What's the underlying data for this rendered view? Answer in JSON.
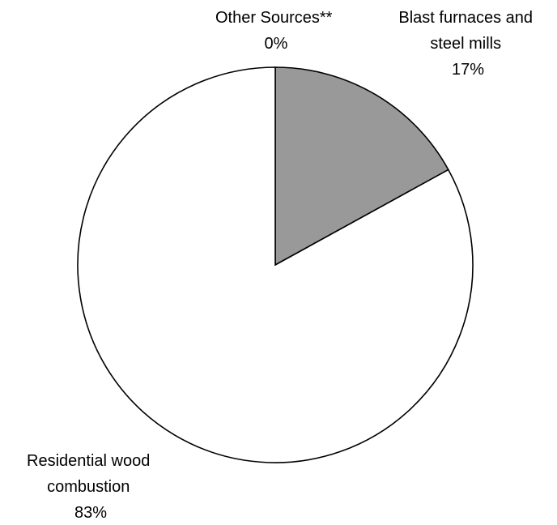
{
  "chart_data": {
    "type": "pie",
    "title": "",
    "slices": [
      {
        "label_lines": [
          "Blast furnaces and",
          "steel mills"
        ],
        "percent_label": "17%",
        "value": 17,
        "color": "#999999"
      },
      {
        "label_lines": [
          "Residential wood",
          "combustion"
        ],
        "percent_label": "83%",
        "value": 83,
        "color": "#ffffff"
      },
      {
        "label_lines": [
          "Other Sources**"
        ],
        "percent_label": "0%",
        "value": 0,
        "color": "#ffffff"
      }
    ],
    "start": "12 o'clock",
    "direction": "clockwise",
    "legend": "none",
    "outline_color": "#000000"
  }
}
